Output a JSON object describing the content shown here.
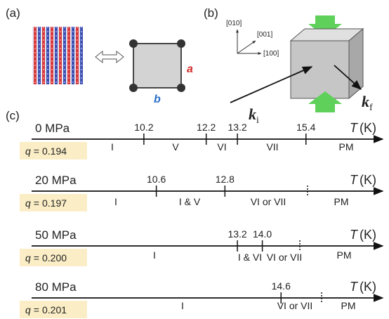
{
  "panels": {
    "a": "(a)",
    "b": "(b)",
    "c": "(c)"
  },
  "lattice": {
    "a": "a",
    "b": "b"
  },
  "directions": [
    "[010]",
    "[001]",
    "[100]"
  ],
  "wavevectors": {
    "incident": {
      "symbol": "k",
      "subscript": "i"
    },
    "final": {
      "symbol": "k",
      "subscript": "f"
    }
  },
  "axis": {
    "symbol": "T",
    "unit": "(K)"
  },
  "q_symbol": "q",
  "q_relation": "=",
  "rows": [
    {
      "pressure": "0 MPa",
      "q": "0.194",
      "ticks": [
        10.2,
        12.2,
        13.2,
        15.4
      ],
      "phases": [
        "I",
        "V",
        "VI",
        "VII",
        "PM"
      ]
    },
    {
      "pressure": "20 MPa",
      "q": "0.197",
      "ticks": [
        10.6,
        12.8
      ],
      "phases": [
        "I",
        "I & V",
        "VI or VII",
        "PM"
      ]
    },
    {
      "pressure": "50 MPa",
      "q": "0.200",
      "ticks": [
        13.2,
        {
          "value": 14,
          "label": "14.0"
        }
      ],
      "phases": [
        "I",
        "I & VI",
        "VI or VII",
        "PM"
      ]
    },
    {
      "pressure": "80 MPa",
      "q": "0.201",
      "ticks": [
        14.6
      ],
      "phases": [
        "I",
        "VI or VII",
        "PM"
      ]
    }
  ]
}
